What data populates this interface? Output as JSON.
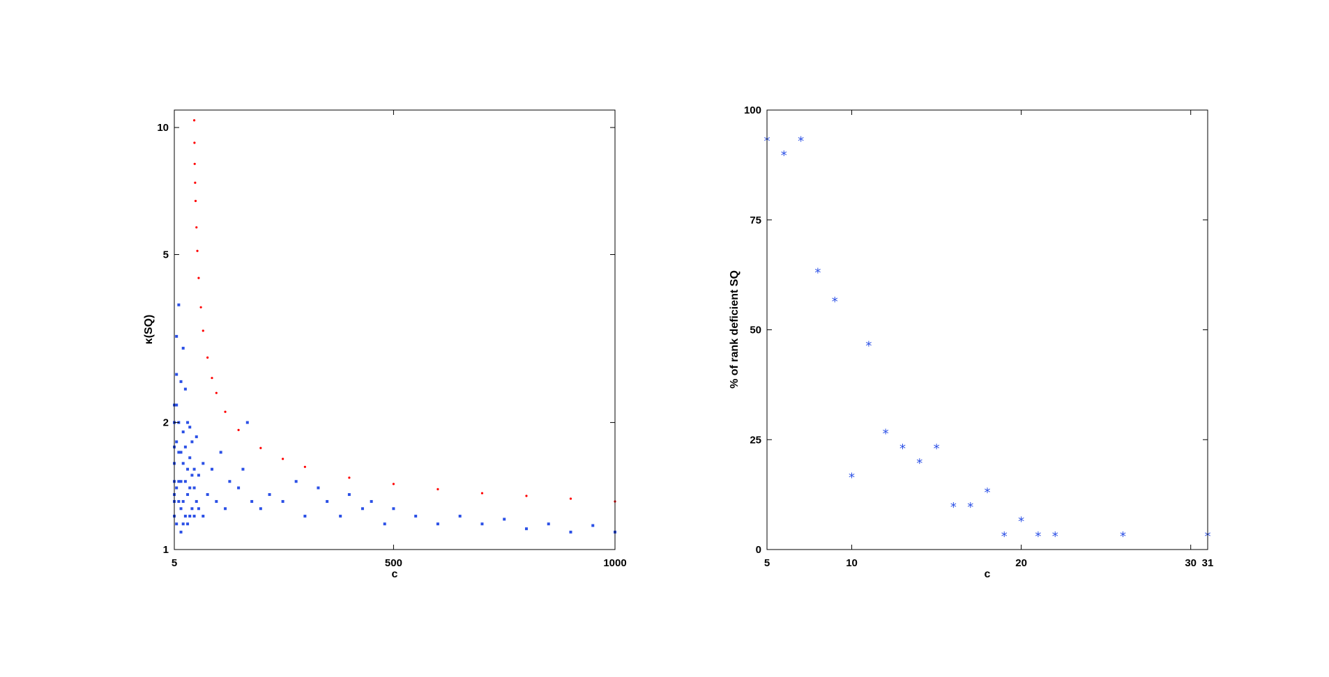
{
  "chart_data": [
    {
      "type": "scatter",
      "title": "",
      "xlabel": "c",
      "ylabel": "κ(SQ)",
      "xlim": [
        5,
        1000
      ],
      "ylim": [
        1,
        11
      ],
      "yscale": "log",
      "grid": false,
      "xticks": [
        5,
        500,
        1000
      ],
      "yticks": [
        1,
        2,
        5,
        10
      ],
      "series": [
        {
          "color": "#ff0000",
          "marker": "dot",
          "x": [
            50,
            50.5,
            51,
            52,
            53,
            55,
            57,
            60,
            65,
            70,
            80,
            90,
            100,
            120,
            150,
            200,
            250,
            300,
            400,
            500,
            600,
            700,
            800,
            900,
            1000
          ],
          "y": [
            10.4,
            9.2,
            8.2,
            7.4,
            6.7,
            5.8,
            5.1,
            4.4,
            3.75,
            3.3,
            2.85,
            2.55,
            2.35,
            2.12,
            1.92,
            1.74,
            1.64,
            1.57,
            1.48,
            1.43,
            1.39,
            1.36,
            1.34,
            1.32,
            1.3
          ]
        },
        {
          "color": "#2b50e6",
          "marker": "square",
          "x": [
            5,
            5,
            5,
            5,
            5,
            5,
            5,
            5,
            10,
            10,
            10,
            10,
            10,
            10,
            15,
            15,
            15,
            15,
            15,
            20,
            20,
            20,
            20,
            20,
            25,
            25,
            25,
            25,
            25,
            30,
            30,
            30,
            30,
            35,
            35,
            35,
            35,
            40,
            40,
            40,
            40,
            45,
            45,
            45,
            50,
            50,
            50,
            55,
            55,
            60,
            60,
            70,
            70,
            80,
            90,
            100,
            110,
            120,
            130,
            150,
            160,
            170,
            180,
            200,
            220,
            250,
            280,
            300,
            330,
            350,
            380,
            400,
            430,
            450,
            480,
            500,
            550,
            600,
            650,
            700,
            750,
            800,
            850,
            900,
            950,
            1000
          ],
          "y": [
            1.2,
            1.3,
            1.35,
            1.45,
            1.6,
            1.75,
            2.0,
            2.2,
            1.15,
            1.4,
            1.8,
            2.2,
            2.6,
            3.2,
            1.3,
            1.45,
            1.7,
            2.0,
            3.8,
            1.1,
            1.25,
            1.45,
            1.7,
            2.5,
            1.15,
            1.3,
            1.6,
            1.9,
            3.0,
            1.2,
            1.45,
            1.75,
            2.4,
            1.15,
            1.35,
            1.55,
            2.0,
            1.2,
            1.4,
            1.65,
            1.95,
            1.25,
            1.5,
            1.8,
            1.2,
            1.4,
            1.55,
            1.3,
            1.85,
            1.25,
            1.5,
            1.2,
            1.6,
            1.35,
            1.55,
            1.3,
            1.7,
            1.25,
            1.45,
            1.4,
            1.55,
            2.0,
            1.3,
            1.25,
            1.35,
            1.3,
            1.45,
            1.2,
            1.4,
            1.3,
            1.2,
            1.35,
            1.25,
            1.3,
            1.15,
            1.25,
            1.2,
            1.15,
            1.2,
            1.15,
            1.18,
            1.12,
            1.15,
            1.1,
            1.14,
            1.1
          ]
        }
      ]
    },
    {
      "type": "scatter",
      "title": "",
      "xlabel": "c",
      "ylabel": "% of rank deficient SQ",
      "xlim": [
        5,
        31
      ],
      "ylim": [
        0,
        100
      ],
      "grid": false,
      "xticks": [
        5,
        10,
        20,
        30,
        31
      ],
      "yticks": [
        0,
        25,
        50,
        75,
        100
      ],
      "series": [
        {
          "color": "#2b50e6",
          "marker": "asterisk",
          "x": [
            5,
            6,
            7,
            8,
            9,
            10,
            11,
            12,
            13,
            14,
            15,
            16,
            17,
            18,
            19,
            20,
            21,
            22,
            26,
            31
          ],
          "y": [
            93.3,
            90.0,
            93.3,
            63.3,
            56.7,
            16.7,
            46.7,
            26.7,
            23.3,
            20.0,
            23.3,
            10.0,
            10.0,
            13.3,
            3.3,
            6.7,
            3.3,
            3.3,
            3.3,
            3.3
          ]
        }
      ]
    }
  ]
}
